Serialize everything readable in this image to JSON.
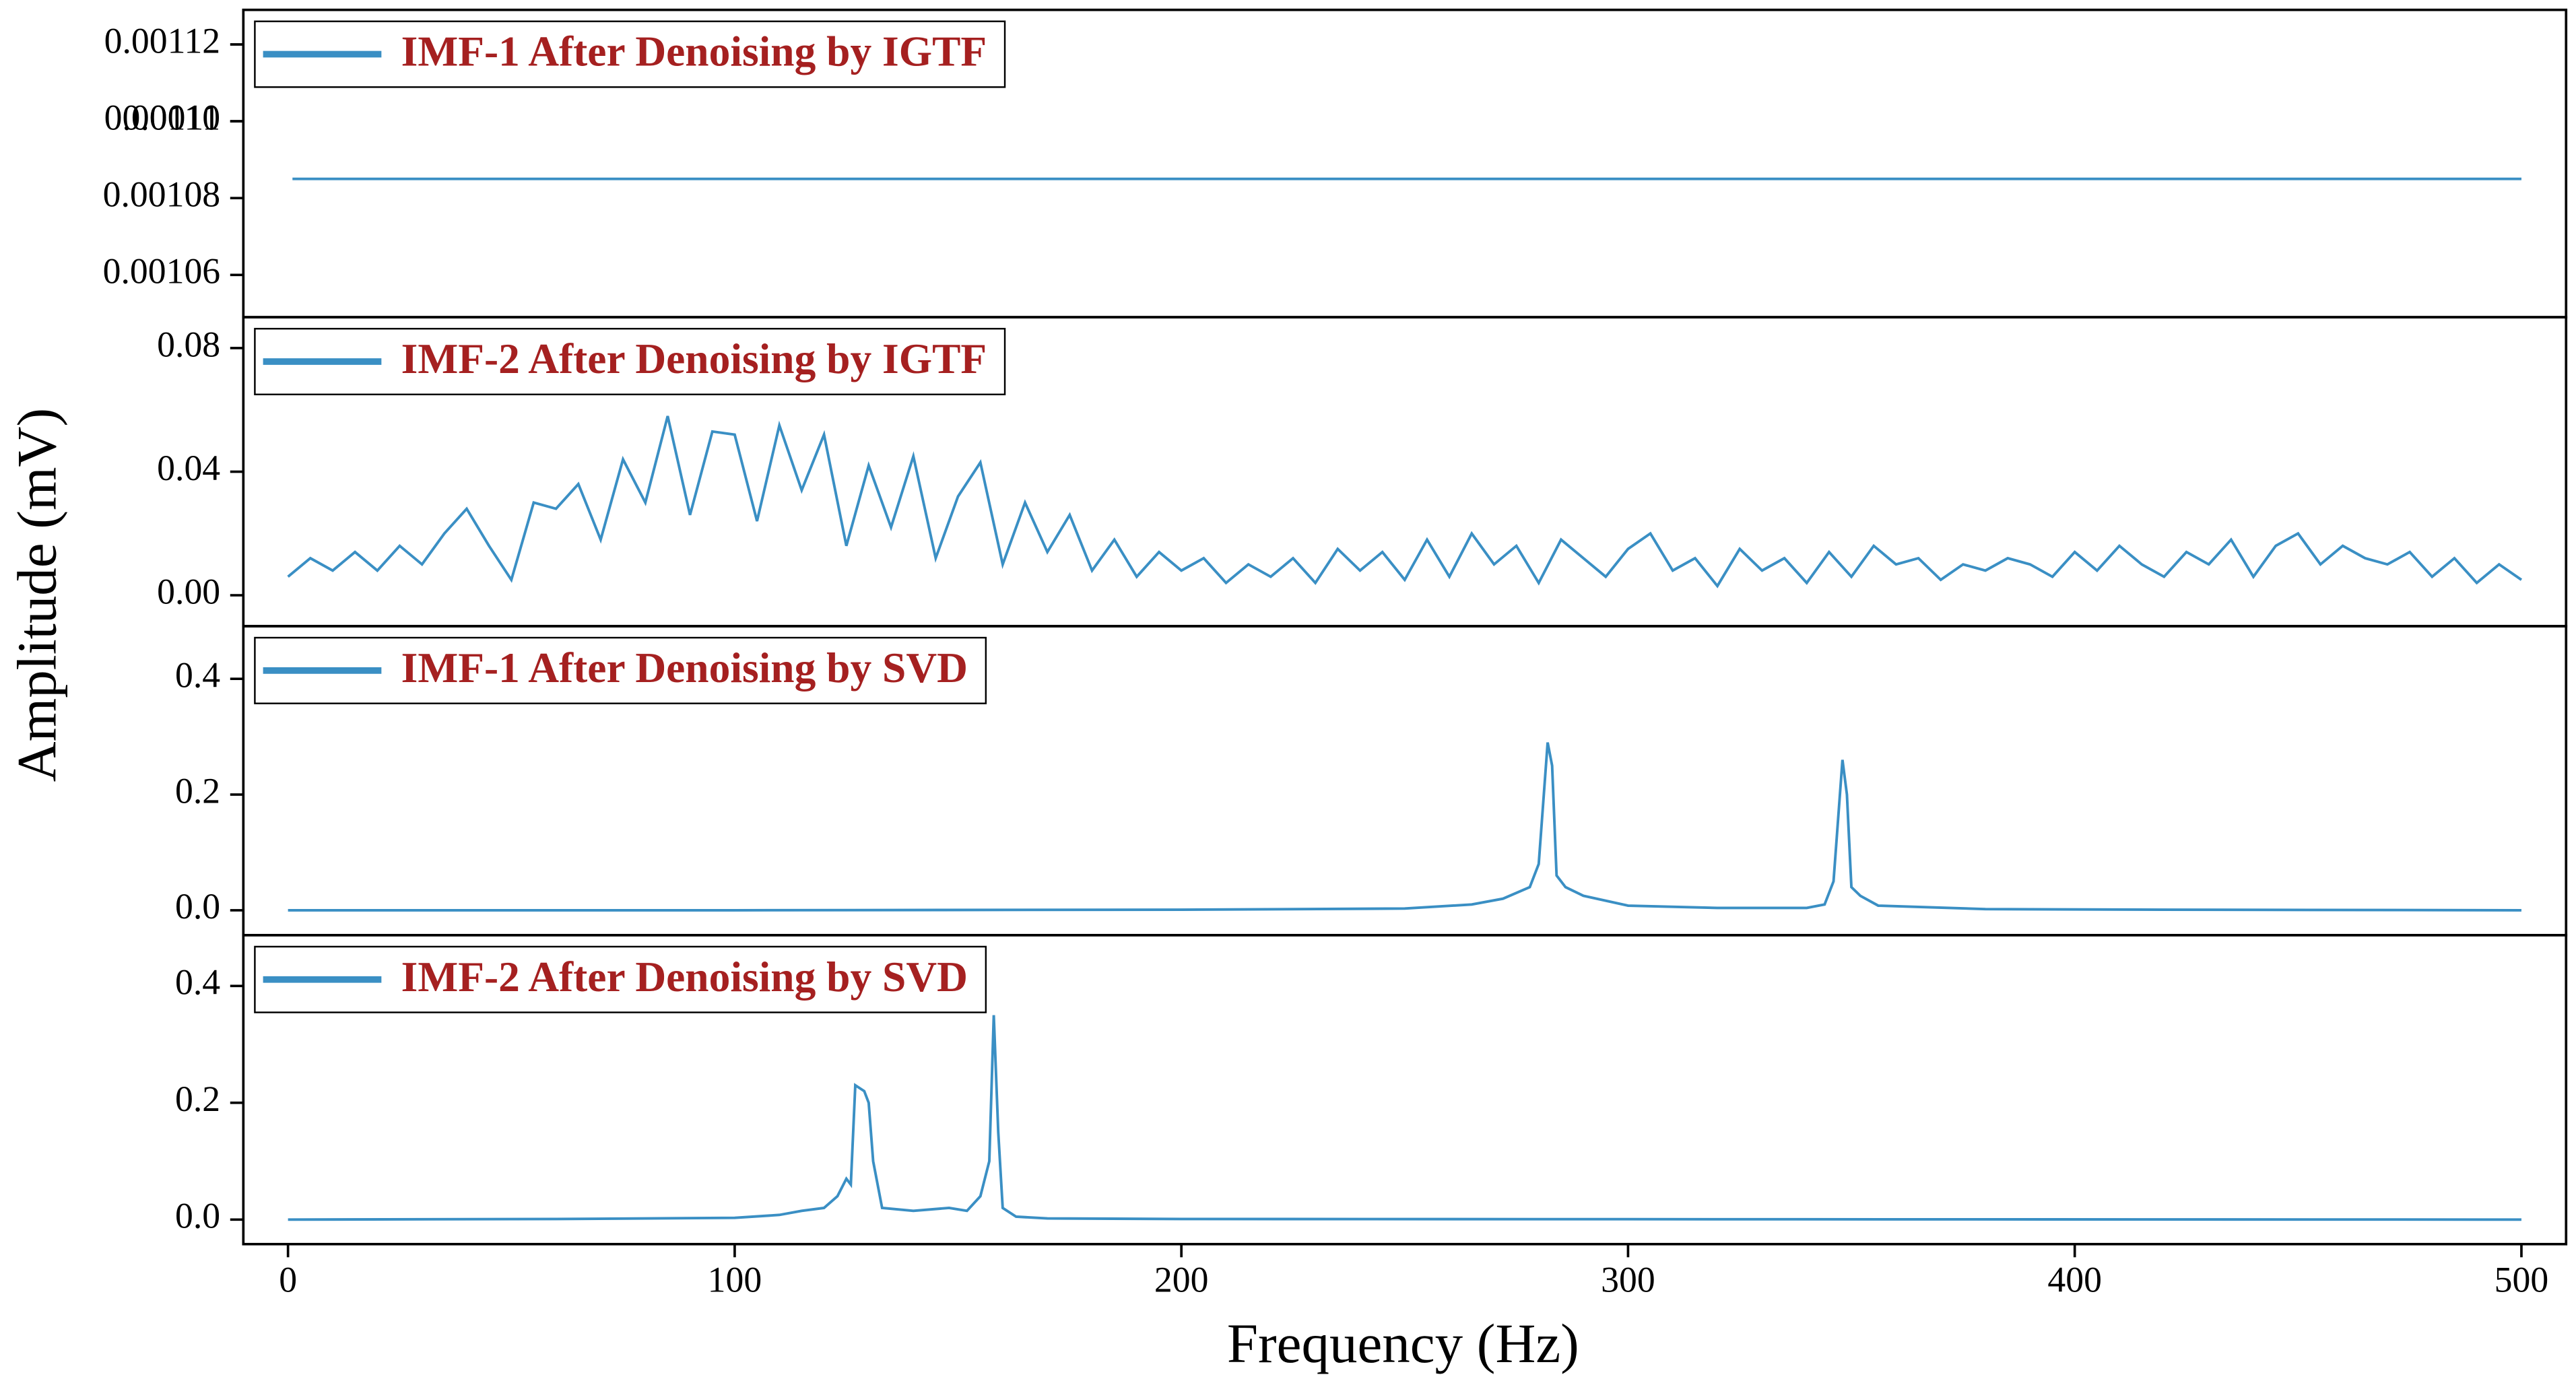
{
  "ylabel": "Amplitude (mV)",
  "chart_data": [
    {
      "type": "line",
      "xlim": [
        -10,
        510
      ],
      "ylim": [
        0.001049,
        0.001129
      ],
      "yticks": [
        0.00106,
        0.00108,
        0.0011,
        {
          "value": 0.0011,
          "label": "0.00110"
        },
        0.00112
      ],
      "series": [
        {
          "name": "IMF-1 After Denoising by IGTF",
          "color": "#3a8fc4",
          "x": [
            1,
            500
          ],
          "values": [
            0.001085,
            0.001085
          ]
        }
      ]
    },
    {
      "type": "line",
      "xlim": [
        -10,
        510
      ],
      "ylim": [
        -0.01,
        0.09
      ],
      "yticks": [
        {
          "value": 0,
          "label": "0.00"
        },
        0.04,
        0.08
      ],
      "series": [
        {
          "name": "IMF-2 After Denoising by IGTF",
          "color": "#3a8fc4",
          "x": [
            0,
            5,
            10,
            15,
            20,
            25,
            30,
            35,
            40,
            45,
            50,
            55,
            60,
            65,
            70,
            75,
            80,
            85,
            90,
            95,
            100,
            105,
            110,
            115,
            120,
            125,
            130,
            135,
            140,
            145,
            150,
            155,
            160,
            165,
            170,
            175,
            180,
            185,
            190,
            195,
            200,
            205,
            210,
            215,
            220,
            225,
            230,
            235,
            240,
            245,
            250,
            255,
            260,
            265,
            270,
            275,
            280,
            285,
            290,
            295,
            300,
            305,
            310,
            315,
            320,
            325,
            330,
            335,
            340,
            345,
            350,
            355,
            360,
            365,
            370,
            375,
            380,
            385,
            390,
            395,
            400,
            405,
            410,
            415,
            420,
            425,
            430,
            435,
            440,
            445,
            450,
            455,
            460,
            465,
            470,
            475,
            480,
            485,
            490,
            495,
            500
          ],
          "values": [
            0.006,
            0.012,
            0.008,
            0.014,
            0.008,
            0.016,
            0.01,
            0.02,
            0.028,
            0.016,
            0.005,
            0.03,
            0.028,
            0.036,
            0.018,
            0.044,
            0.03,
            0.058,
            0.026,
            0.053,
            0.052,
            0.024,
            0.055,
            0.034,
            0.052,
            0.016,
            0.042,
            0.022,
            0.045,
            0.012,
            0.032,
            0.043,
            0.01,
            0.03,
            0.014,
            0.026,
            0.008,
            0.018,
            0.006,
            0.014,
            0.008,
            0.012,
            0.004,
            0.01,
            0.006,
            0.012,
            0.004,
            0.015,
            0.008,
            0.014,
            0.005,
            0.018,
            0.006,
            0.02,
            0.01,
            0.016,
            0.004,
            0.018,
            0.012,
            0.006,
            0.015,
            0.02,
            0.008,
            0.012,
            0.003,
            0.015,
            0.008,
            0.012,
            0.004,
            0.014,
            0.006,
            0.016,
            0.01,
            0.012,
            0.005,
            0.01,
            0.008,
            0.012,
            0.01,
            0.006,
            0.014,
            0.008,
            0.016,
            0.01,
            0.006,
            0.014,
            0.01,
            0.018,
            0.006,
            0.016,
            0.02,
            0.01,
            0.016,
            0.012,
            0.01,
            0.014,
            0.006,
            0.012,
            0.004,
            0.01,
            0.005
          ]
        }
      ]
    },
    {
      "type": "line",
      "xlim": [
        -10,
        510
      ],
      "ylim": [
        -0.043,
        0.491
      ],
      "yticks": [
        {
          "value": 0,
          "label": "0.0"
        },
        0.2,
        0.4
      ],
      "series": [
        {
          "name": "IMF-1 After Denoising by SVD",
          "color": "#3a8fc4",
          "x": [
            0,
            100,
            200,
            250,
            265,
            272,
            278,
            280,
            282,
            283,
            284,
            286,
            290,
            300,
            320,
            340,
            344,
            346,
            348,
            349,
            350,
            352,
            356,
            380,
            420,
            500
          ],
          "values": [
            0,
            0,
            0.001,
            0.003,
            0.01,
            0.02,
            0.04,
            0.08,
            0.29,
            0.25,
            0.06,
            0.04,
            0.025,
            0.008,
            0.004,
            0.004,
            0.01,
            0.05,
            0.26,
            0.2,
            0.04,
            0.025,
            0.008,
            0.002,
            0.001,
            0
          ]
        }
      ]
    },
    {
      "type": "line",
      "xlim": [
        -10,
        510
      ],
      "ylim": [
        -0.042,
        0.487
      ],
      "yticks": [
        {
          "value": 0,
          "label": "0.0"
        },
        0.2,
        0.4
      ],
      "xticks": [
        0,
        100,
        200,
        300,
        400,
        500
      ],
      "xlabel": "Frequency (Hz)",
      "series": [
        {
          "name": "IMF-2 After Denoising by SVD",
          "color": "#3a8fc4",
          "x": [
            0,
            60,
            100,
            110,
            115,
            120,
            123,
            125,
            126,
            127,
            129,
            130,
            131,
            133,
            140,
            148,
            152,
            155,
            157,
            158,
            159,
            160,
            163,
            170,
            200,
            500
          ],
          "values": [
            0,
            0.001,
            0.003,
            0.008,
            0.015,
            0.02,
            0.04,
            0.07,
            0.06,
            0.23,
            0.22,
            0.2,
            0.1,
            0.02,
            0.015,
            0.02,
            0.015,
            0.04,
            0.1,
            0.35,
            0.15,
            0.02,
            0.005,
            0.002,
            0.001,
            0
          ]
        }
      ]
    }
  ]
}
